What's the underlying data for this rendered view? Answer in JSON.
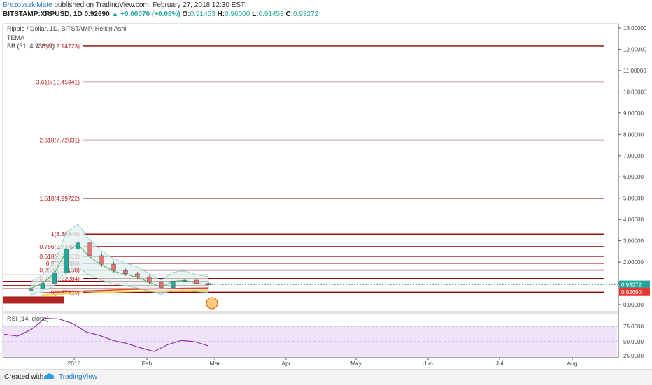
{
  "header": {
    "author": "BrezovszkiMate",
    "published_text": "published on TradingView.com, February 27, 2018 12:30 EST",
    "symbol": "BITSTAMP:XRPUSD, 1D",
    "last": "0.92690",
    "change": "+0.00076 (+0.08%)",
    "o_label": "O:",
    "o": "0.91453",
    "h_label": "H:",
    "h": "0.96000",
    "l_label": "L:",
    "l": "0.91453",
    "c_label": "C:",
    "c": "0.93272"
  },
  "legend": {
    "title": "Ripple / Dollar, 1D, BITSTAMP, Heikin Ashi",
    "tema": "TEMA",
    "bb": "BB (31, 4.236, 2)"
  },
  "rsi_label": "RSI (14, close)",
  "fib_levels": [
    {
      "label": "4.236(12.14723)",
      "value": 12.14723
    },
    {
      "label": "3.618(10.45941)",
      "value": 10.45941
    },
    {
      "label": "2.618(7.72831)",
      "value": 7.72831
    },
    {
      "label": "1.618(4.99722)",
      "value": 4.99722
    },
    {
      "label": "1(3.30940)",
      "value": 3.3094
    },
    {
      "label": "0.786(2.72495)",
      "value": 2.72495
    },
    {
      "label": "0.618(2.26612)",
      "value": 2.26612
    },
    {
      "label": "0.5(1.94380)",
      "value": 1.9438
    },
    {
      "label": "0.382(1.62158)",
      "value": 1.62158
    },
    {
      "label": "0.236(1.22284)",
      "value": 1.22284
    },
    {
      "label": "0(0.57820)",
      "value": 0.5782
    }
  ],
  "price_axis": [
    "13.00000",
    "12.00000",
    "11.00000",
    "10.00000",
    "9.00000",
    "8.00000",
    "7.00000",
    "6.00000",
    "5.00000",
    "4.00000",
    "3.00000",
    "2.00000",
    "1.00000",
    "0.00000"
  ],
  "price_badges": [
    {
      "text": "0.93272",
      "value": 0.93272,
      "color": "#26a69a"
    },
    {
      "text": "0.92690",
      "value": 0.9269,
      "color": "#e53935"
    }
  ],
  "rsi_axis": [
    "75.0000",
    "50.0000",
    "25.0000"
  ],
  "time_axis": [
    "2018",
    "Feb",
    "Mar",
    "Apr",
    "May",
    "Jun",
    "Jul",
    "Aug"
  ],
  "footer": {
    "created": "Created with",
    "brand": "TradingView"
  },
  "colors": {
    "fib": "#8b0000",
    "rsi_line": "#8e24aa",
    "rsi_band": "#efe3f9",
    "bb": "#4db6ac",
    "tema": "#4caf50"
  },
  "chart_data": {
    "type": "line",
    "title": "Ripple / Dollar, 1D, BITSTAMP, Heikin Ashi",
    "xlabel": "",
    "ylabel": "",
    "ylim": [
      0,
      13
    ],
    "x": [
      "2017-12-20",
      "2017-12-25",
      "2017-12-30",
      "2018-01-04",
      "2018-01-08",
      "2018-01-12",
      "2018-01-16",
      "2018-01-20",
      "2018-01-25",
      "2018-01-30",
      "2018-02-04",
      "2018-02-09",
      "2018-02-14",
      "2018-02-19",
      "2018-02-24",
      "2018-02-27"
    ],
    "series": [
      {
        "name": "XRPUSD",
        "values": [
          0.75,
          1.0,
          1.5,
          2.6,
          2.9,
          2.3,
          1.9,
          1.6,
          1.45,
          1.3,
          1.05,
          0.8,
          1.1,
          1.15,
          1.0,
          0.93
        ]
      }
    ],
    "rsi": {
      "ylim": [
        25,
        100
      ],
      "values": [
        62,
        59,
        70,
        88,
        87,
        80,
        66,
        60,
        52,
        47,
        40,
        34,
        45,
        52,
        50,
        43
      ]
    }
  }
}
